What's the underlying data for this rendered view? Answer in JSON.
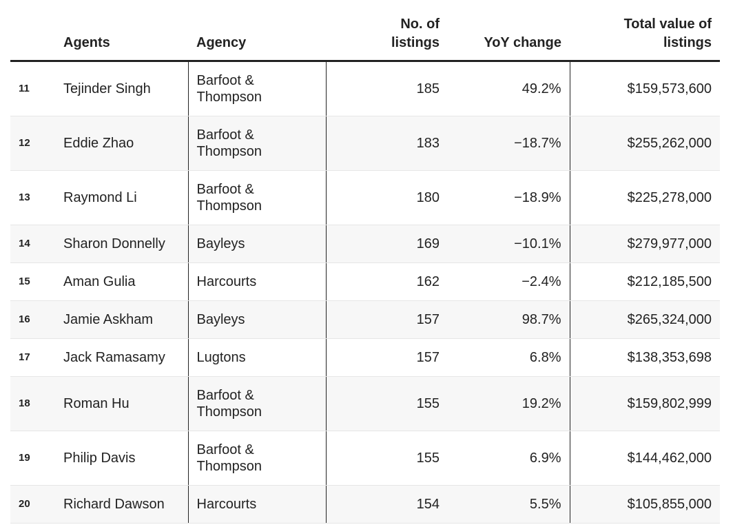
{
  "table": {
    "headers": {
      "rank": "",
      "agents": "Agents",
      "agency": "Agency",
      "listings_line1": "No. of",
      "listings_line2": "listings",
      "yoy": "YoY change",
      "total_line1": "Total value of",
      "total_line2": "listings"
    }
  },
  "chart_data": {
    "type": "table",
    "columns": [
      "",
      "Agents",
      "Agency",
      "No. of listings",
      "YoY change",
      "Total value of listings"
    ],
    "rows": [
      {
        "rank": "11",
        "agent": "Tejinder Singh",
        "agency_l1": "Barfoot &",
        "agency_l2": "Thompson",
        "listings": "185",
        "yoy": "49.2%",
        "total": "$159,573,600"
      },
      {
        "rank": "12",
        "agent": "Eddie Zhao",
        "agency_l1": "Barfoot &",
        "agency_l2": "Thompson",
        "listings": "183",
        "yoy": "−18.7%",
        "total": "$255,262,000"
      },
      {
        "rank": "13",
        "agent": "Raymond Li",
        "agency_l1": "Barfoot &",
        "agency_l2": "Thompson",
        "listings": "180",
        "yoy": "−18.9%",
        "total": "$225,278,000"
      },
      {
        "rank": "14",
        "agent": "Sharon Donnelly",
        "agency_l1": "Bayleys",
        "agency_l2": "",
        "listings": "169",
        "yoy": "−10.1%",
        "total": "$279,977,000"
      },
      {
        "rank": "15",
        "agent": "Aman Gulia",
        "agency_l1": "Harcourts",
        "agency_l2": "",
        "listings": "162",
        "yoy": "−2.4%",
        "total": "$212,185,500"
      },
      {
        "rank": "16",
        "agent": "Jamie Askham",
        "agency_l1": "Bayleys",
        "agency_l2": "",
        "listings": "157",
        "yoy": "98.7%",
        "total": "$265,324,000"
      },
      {
        "rank": "17",
        "agent": "Jack Ramasamy",
        "agency_l1": "Lugtons",
        "agency_l2": "",
        "listings": "157",
        "yoy": "6.8%",
        "total": "$138,353,698"
      },
      {
        "rank": "18",
        "agent": "Roman Hu",
        "agency_l1": "Barfoot &",
        "agency_l2": "Thompson",
        "listings": "155",
        "yoy": "19.2%",
        "total": "$159,802,999"
      },
      {
        "rank": "19",
        "agent": "Philip Davis",
        "agency_l1": "Barfoot &",
        "agency_l2": "Thompson",
        "listings": "155",
        "yoy": "6.9%",
        "total": "$144,462,000"
      },
      {
        "rank": "20",
        "agent": "Richard Dawson",
        "agency_l1": "Harcourts",
        "agency_l2": "",
        "listings": "154",
        "yoy": "5.5%",
        "total": "$105,855,000"
      }
    ]
  }
}
